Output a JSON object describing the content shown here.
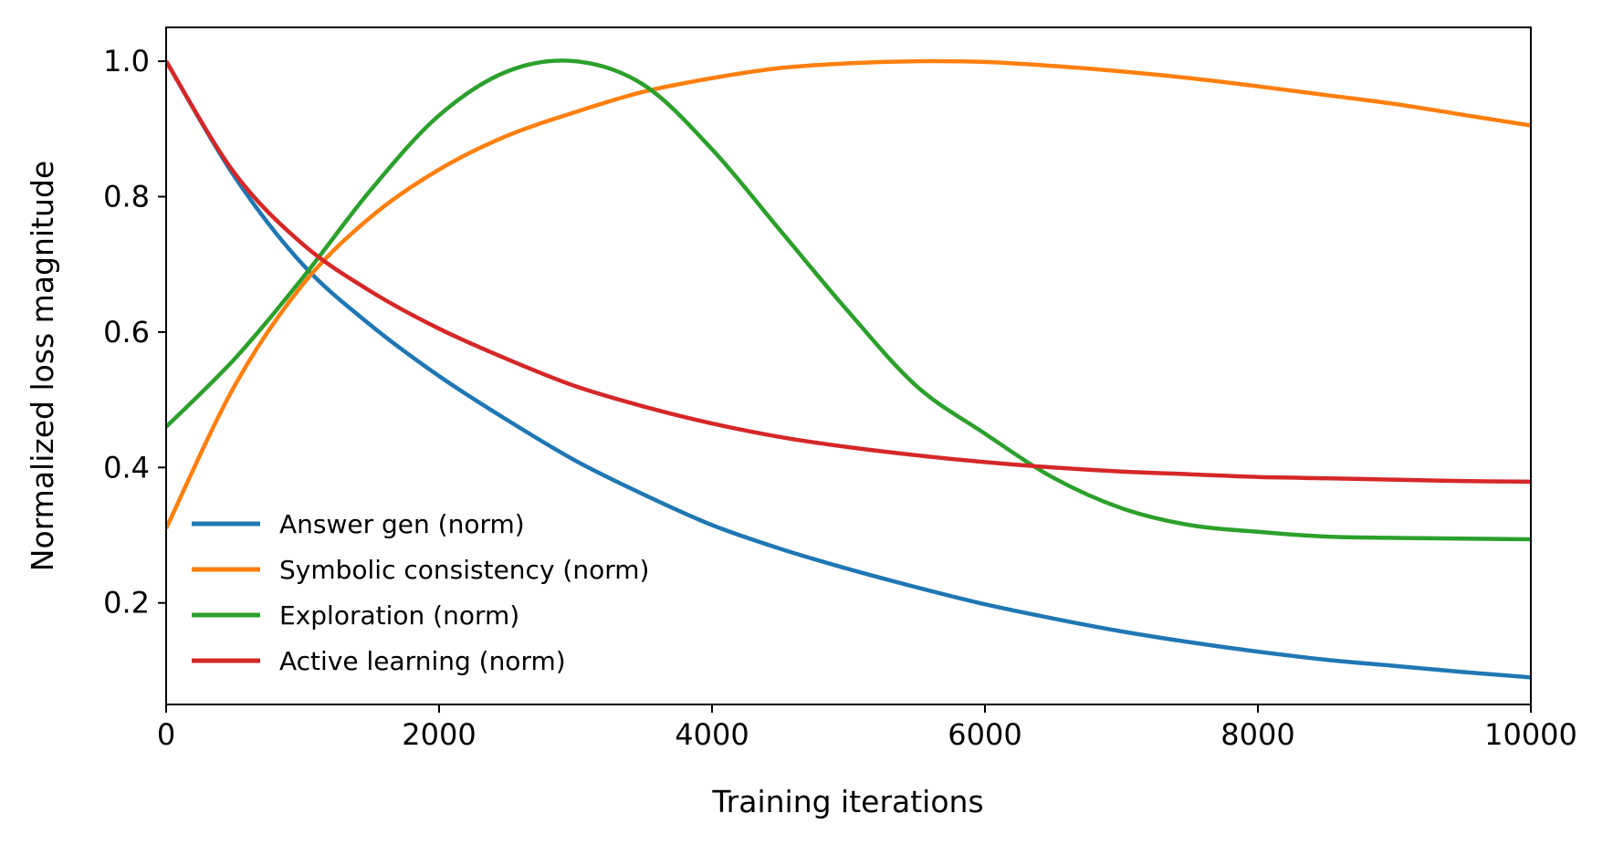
{
  "chart_data": {
    "type": "line",
    "title": "",
    "xlabel": "Training iterations",
    "ylabel": "Normalized loss magnitude",
    "xlim": [
      0,
      10000
    ],
    "ylim": [
      0.05,
      1.05
    ],
    "xticks": [
      0,
      2000,
      4000,
      6000,
      8000,
      10000
    ],
    "xtick_labels": [
      "0",
      "2000",
      "4000",
      "6000",
      "8000",
      "10000"
    ],
    "yticks": [
      0.2,
      0.4,
      0.6,
      0.8,
      1.0
    ],
    "ytick_labels": [
      "0.2",
      "0.4",
      "0.6",
      "0.8",
      "1.0"
    ],
    "grid": false,
    "legend_position": "lower-left",
    "x": [
      0,
      500,
      1000,
      1500,
      2000,
      2500,
      3000,
      3500,
      4000,
      4500,
      5000,
      5500,
      6000,
      6500,
      7000,
      7500,
      8000,
      8500,
      9000,
      9500,
      10000
    ],
    "series": [
      {
        "name": "Answer gen (norm)",
        "color": "#1f77b4",
        "values": [
          1.0,
          0.83,
          0.7,
          0.61,
          0.535,
          0.47,
          0.41,
          0.36,
          0.315,
          0.28,
          0.25,
          0.223,
          0.198,
          0.177,
          0.158,
          0.142,
          0.128,
          0.116,
          0.107,
          0.098,
          0.09
        ]
      },
      {
        "name": "Symbolic consistency (norm)",
        "color": "#ff7f0e",
        "values": [
          0.31,
          0.52,
          0.67,
          0.77,
          0.84,
          0.89,
          0.925,
          0.955,
          0.975,
          0.99,
          0.997,
          1.0,
          0.999,
          0.993,
          0.985,
          0.975,
          0.963,
          0.95,
          0.937,
          0.921,
          0.905
        ]
      },
      {
        "name": "Exploration (norm)",
        "color": "#2ca02c",
        "values": [
          0.46,
          0.56,
          0.68,
          0.81,
          0.92,
          0.985,
          1.0,
          0.965,
          0.87,
          0.75,
          0.63,
          0.52,
          0.45,
          0.385,
          0.34,
          0.315,
          0.305,
          0.298,
          0.296,
          0.295,
          0.294
        ]
      },
      {
        "name": "Active learning (norm)",
        "color": "#d62728",
        "values": [
          1.0,
          0.835,
          0.73,
          0.66,
          0.605,
          0.56,
          0.52,
          0.49,
          0.465,
          0.445,
          0.43,
          0.418,
          0.408,
          0.4,
          0.394,
          0.39,
          0.386,
          0.384,
          0.382,
          0.38,
          0.379
        ]
      }
    ]
  }
}
